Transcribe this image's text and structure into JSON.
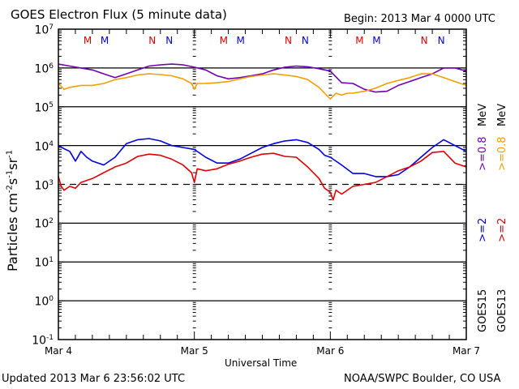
{
  "header": {
    "title": "GOES Electron Flux (5 minute data)",
    "begin": "Begin: 2013 Mar 4 0000 UTC"
  },
  "footer": {
    "updated": "Updated 2013 Mar  6 23:56:02 UTC",
    "credit": "NOAA/SWPC Boulder, CO USA"
  },
  "chart_data": {
    "type": "line",
    "title": "GOES Electron Flux (5 minute data)",
    "xlabel": "Universal Time",
    "ylabel": "Particles cm-2s-1sr-1",
    "ylabel_parts": {
      "base": "Particles cm",
      "e1": "-2",
      "s": "s",
      "e2": "-1",
      "sr": "sr",
      "e3": "-1"
    },
    "yscale": "log",
    "ylim": [
      0.1,
      10000000
    ],
    "xlim_hours": [
      0,
      72
    ],
    "x_tick_labels": [
      "Mar 4",
      "Mar 5",
      "Mar 6",
      "Mar 7"
    ],
    "y_tick_labels": [
      {
        "exp": 7,
        "base": "10",
        "sup": "7"
      },
      {
        "exp": 6,
        "base": "10",
        "sup": "6"
      },
      {
        "exp": 5,
        "base": "10",
        "sup": "5"
      },
      {
        "exp": 4,
        "base": "10",
        "sup": "4"
      },
      {
        "exp": 3,
        "base": "10",
        "sup": "3"
      },
      {
        "exp": 2,
        "base": "10",
        "sup": "2"
      },
      {
        "exp": 1,
        "base": "10",
        "sup": "1"
      },
      {
        "exp": 0,
        "base": "10",
        "sup": "0"
      },
      {
        "exp": -1,
        "base": "10",
        "sup": "-1"
      }
    ],
    "solid_gridlines_exp": [
      6,
      5,
      4,
      2,
      1,
      0
    ],
    "dashed_threshold_exp": 3,
    "markers": [
      {
        "label": "M",
        "hour": 5,
        "color": "#e00000"
      },
      {
        "label": "M",
        "hour": 8,
        "color": "#0000e0"
      },
      {
        "label": "N",
        "hour": 16.5,
        "color": "#e00000"
      },
      {
        "label": "N",
        "hour": 19.5,
        "color": "#0000e0"
      },
      {
        "label": "M",
        "hour": 29,
        "color": "#e00000"
      },
      {
        "label": "M",
        "hour": 32,
        "color": "#0000e0"
      },
      {
        "label": "N",
        "hour": 40.5,
        "color": "#e00000"
      },
      {
        "label": "N",
        "hour": 43.5,
        "color": "#0000e0"
      },
      {
        "label": "M",
        "hour": 53,
        "color": "#e00000"
      },
      {
        "label": "M",
        "hour": 56,
        "color": "#0000e0"
      },
      {
        "label": "N",
        "hour": 64.5,
        "color": "#e00000"
      },
      {
        "label": "N",
        "hour": 67.5,
        "color": "#0000e0"
      }
    ],
    "legend": {
      "placement": "right",
      "columns": [
        {
          "satellite": "GOES15",
          "entries": [
            {
              "text": ">=2",
              "color": "#0000e0"
            },
            {
              "text": ">=0.8",
              "color": "#7000b0"
            }
          ],
          "unit": "MeV"
        },
        {
          "satellite": "GOES13",
          "entries": [
            {
              "text": ">=2",
              "color": "#e00000"
            },
            {
              "text": ">=0.8",
              "color": "#f0a000"
            }
          ],
          "unit": "MeV"
        }
      ]
    },
    "series": [
      {
        "name": "GOES15 >=0.8 MeV",
        "color": "#7000b0",
        "hours": [
          0,
          2,
          4,
          6,
          8,
          10,
          12,
          14,
          16,
          18,
          20,
          22,
          24,
          26,
          28,
          30,
          32,
          34,
          36,
          38,
          40,
          42,
          44,
          46,
          48,
          50,
          52,
          54,
          56,
          58,
          60,
          62,
          64,
          66,
          68,
          70,
          72
        ],
        "log10": [
          6.1,
          6.05,
          6.0,
          5.95,
          5.85,
          5.75,
          5.85,
          5.95,
          6.05,
          6.08,
          6.1,
          6.08,
          6.02,
          5.95,
          5.8,
          5.72,
          5.75,
          5.8,
          5.85,
          5.95,
          6.02,
          6.05,
          6.03,
          5.98,
          5.92,
          5.62,
          5.6,
          5.45,
          5.38,
          5.4,
          5.55,
          5.65,
          5.75,
          5.85,
          6.0,
          6.0,
          5.92
        ]
      },
      {
        "name": "GOES13 >=0.8 MeV",
        "color": "#f0a000",
        "hours": [
          0,
          1,
          2,
          4,
          6,
          8,
          10,
          12,
          14,
          16,
          18,
          20,
          22,
          23.5,
          24,
          24.5,
          26,
          28,
          30,
          32,
          34,
          36,
          38,
          40,
          42,
          44,
          46,
          47,
          48,
          49,
          50,
          51,
          52,
          54,
          56,
          58,
          60,
          62,
          64,
          66,
          68,
          70,
          72
        ],
        "log10": [
          5.6,
          5.45,
          5.5,
          5.55,
          5.55,
          5.6,
          5.7,
          5.75,
          5.82,
          5.85,
          5.83,
          5.8,
          5.72,
          5.6,
          5.45,
          5.6,
          5.6,
          5.62,
          5.65,
          5.72,
          5.78,
          5.82,
          5.85,
          5.82,
          5.78,
          5.7,
          5.5,
          5.35,
          5.2,
          5.35,
          5.3,
          5.35,
          5.35,
          5.4,
          5.48,
          5.6,
          5.68,
          5.75,
          5.85,
          5.85,
          5.75,
          5.65,
          5.55
        ]
      },
      {
        "name": "GOES15 >=2 MeV",
        "color": "#0000e0",
        "hours": [
          0,
          1,
          2,
          3,
          4,
          5,
          6,
          8,
          10,
          12,
          14,
          16,
          18,
          20,
          22,
          24,
          26,
          28,
          30,
          32,
          34,
          36,
          38,
          40,
          42,
          44,
          46,
          47,
          48,
          50,
          52,
          54,
          56,
          58,
          60,
          62,
          64,
          66,
          68,
          70,
          72
        ],
        "log10": [
          4.0,
          3.92,
          3.85,
          3.6,
          3.85,
          3.7,
          3.6,
          3.5,
          3.7,
          4.05,
          4.15,
          4.18,
          4.12,
          4.0,
          3.95,
          3.9,
          3.7,
          3.55,
          3.55,
          3.65,
          3.8,
          3.95,
          4.05,
          4.12,
          4.15,
          4.08,
          3.9,
          3.75,
          3.7,
          3.5,
          3.28,
          3.28,
          3.2,
          3.2,
          3.25,
          3.45,
          3.7,
          3.95,
          4.15,
          4.0,
          3.85
        ]
      },
      {
        "name": "GOES13 >=2 MeV",
        "color": "#e00000",
        "hours": [
          0,
          0.5,
          1,
          2,
          3,
          4,
          6,
          8,
          10,
          12,
          14,
          16,
          18,
          20,
          22,
          23.5,
          24,
          24.5,
          26,
          28,
          30,
          32,
          34,
          36,
          38,
          40,
          42,
          44,
          46,
          47,
          48,
          48.5,
          49,
          50,
          52,
          54,
          56,
          58,
          60,
          62,
          64,
          66,
          68,
          70,
          72
        ],
        "log10": [
          3.2,
          2.95,
          2.85,
          2.95,
          2.9,
          3.05,
          3.15,
          3.3,
          3.45,
          3.55,
          3.72,
          3.78,
          3.75,
          3.65,
          3.5,
          3.3,
          3.05,
          3.4,
          3.35,
          3.4,
          3.52,
          3.6,
          3.7,
          3.78,
          3.8,
          3.72,
          3.7,
          3.45,
          3.15,
          2.9,
          2.8,
          2.6,
          2.85,
          2.75,
          2.95,
          3.0,
          3.05,
          3.2,
          3.35,
          3.45,
          3.6,
          3.82,
          3.85,
          3.55,
          3.45
        ]
      }
    ]
  }
}
